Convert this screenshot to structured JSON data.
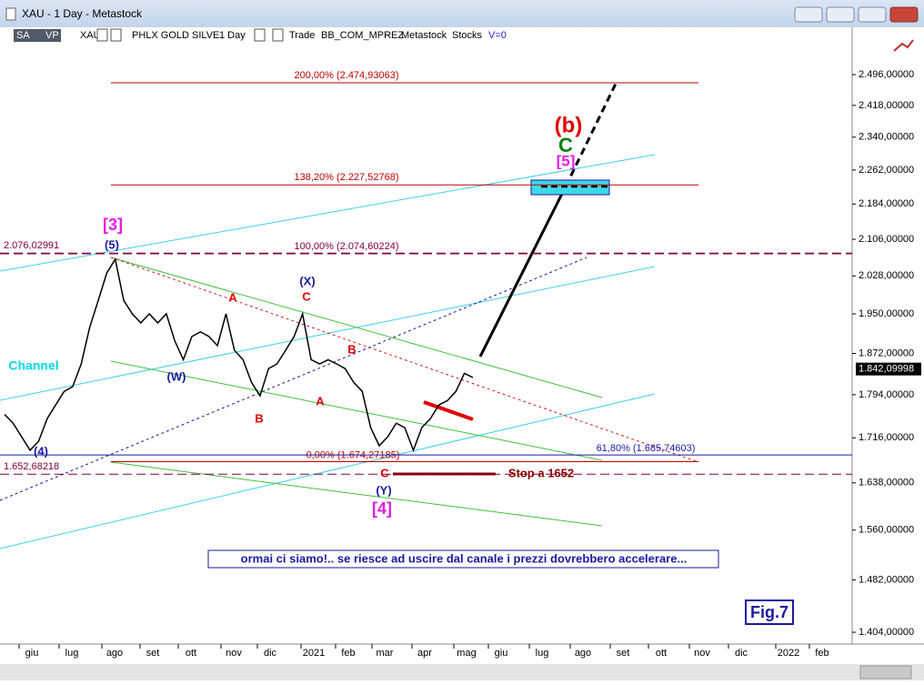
{
  "window": {
    "title": "XAU - 1 Day - Metastock",
    "toolbar": [
      "SA",
      "VP",
      "XAU",
      "PHLX GOLD SILVE",
      "1 Day",
      "Trade",
      "BB_COM_MPREZ",
      "Metastock",
      "Stocks",
      "V=0"
    ]
  },
  "chart_data": {
    "type": "line",
    "color": "#000000",
    "values": [
      1758,
      1742,
      1718,
      1694,
      1710,
      1750,
      1775,
      1800,
      1809,
      1852,
      1923,
      1977,
      2034,
      2063,
      1977,
      1950,
      1932,
      1950,
      1932,
      1950,
      1896,
      1860,
      1905,
      1914,
      1905,
      1887,
      1950,
      1878,
      1860,
      1817,
      1792,
      1843,
      1852,
      1878,
      1905,
      1950,
      1860,
      1852,
      1860,
      1852,
      1843,
      1817,
      1800,
      1734,
      1702,
      1718,
      1742,
      1734,
      1694,
      1734,
      1750,
      1775,
      1783,
      1800,
      1834,
      1826
    ],
    "ylim": [
      1387,
      2577
    ],
    "log": true,
    "yticks": [
      {
        "value": 2496,
        "label": "2.496,00000"
      },
      {
        "value": 2418,
        "label": "2.418,00000"
      },
      {
        "value": 2340,
        "label": "2.340,00000"
      },
      {
        "value": 2262,
        "label": "2.262,00000"
      },
      {
        "value": 2184,
        "label": "2.184,00000"
      },
      {
        "value": 2106,
        "label": "2.106,00000"
      },
      {
        "value": 2028,
        "label": "2.028,00000"
      },
      {
        "value": 1950,
        "label": "1.950,00000"
      },
      {
        "value": 1872,
        "label": "1.872,00000"
      },
      {
        "value": 1794,
        "label": "1.794,00000"
      },
      {
        "value": 1716,
        "label": "1.716,00000"
      },
      {
        "value": 1638,
        "label": "1.638,00000"
      },
      {
        "value": 1560,
        "label": "1.560,00000"
      },
      {
        "value": 1482,
        "label": "1.482,00000"
      },
      {
        "value": 1404,
        "label": "1.404,00000"
      }
    ],
    "x_labels": [
      "giu",
      "lug",
      "ago",
      "set",
      "ott",
      "nov",
      "dic",
      "2021",
      "feb",
      "mar",
      "apr",
      "mag",
      "giu",
      "lug",
      "ago",
      "set",
      "ott",
      "nov",
      "dic",
      "2022",
      "feb"
    ],
    "last_price": {
      "value": 1842.09998,
      "label": "1.842,09998"
    },
    "levels": [
      {
        "label": "200,00% (2.474,93063)",
        "value": 2474.93063,
        "color": "#c00000"
      },
      {
        "label": "138,20% (2.227,52768)",
        "value": 2227.52768,
        "color": "#c00000"
      },
      {
        "label": "100,00% (2.074,60224)",
        "value": 2074.60224,
        "color": "#800040"
      },
      {
        "label": "0,00% (1.674,27185)",
        "value": 1674.27185,
        "color": "#c00000"
      },
      {
        "label": "61,80% (1.685,74603)",
        "value": 1685.74603,
        "color": "#1a1aa0"
      },
      {
        "label": "2.076,02991",
        "value": 2076.02991,
        "color": "#800040"
      },
      {
        "label": "1.652,68218",
        "value": 1652.68218,
        "color": "#800040"
      }
    ],
    "annotations": [
      {
        "text": "[3]",
        "color": "#e020e0"
      },
      {
        "text": "(5)",
        "color": "#1a1aa0"
      },
      {
        "text": "(X)",
        "color": "#1a1aa0"
      },
      {
        "text": "C",
        "color": "#e00000"
      },
      {
        "text": "A",
        "color": "#e00000"
      },
      {
        "text": "(W)",
        "color": "#1a1aa0"
      },
      {
        "text": "B",
        "color": "#e00000"
      },
      {
        "text": "A",
        "color": "#e00000"
      },
      {
        "text": "B",
        "color": "#e00000"
      },
      {
        "text": "C",
        "color": "#e00000"
      },
      {
        "text": "(Y)",
        "color": "#1a1aa0"
      },
      {
        "text": "[4]",
        "color": "#e020e0"
      },
      {
        "text": "(4)",
        "color": "#1a1aa0"
      },
      {
        "text": "Channel",
        "color": "#00d8e8"
      },
      {
        "text": "(b)",
        "color": "#e00000"
      },
      {
        "text": "C",
        "color": "#108010"
      },
      {
        "text": "[5]",
        "color": "#e020e0"
      },
      {
        "text": "Stop a 1652",
        "color": "#8b0000"
      }
    ],
    "comment": "ormai ci siamo!.. se riesce ad uscire dal canale i prezzi dovrebbero accelerare...",
    "figure_label": "Fig.7"
  }
}
